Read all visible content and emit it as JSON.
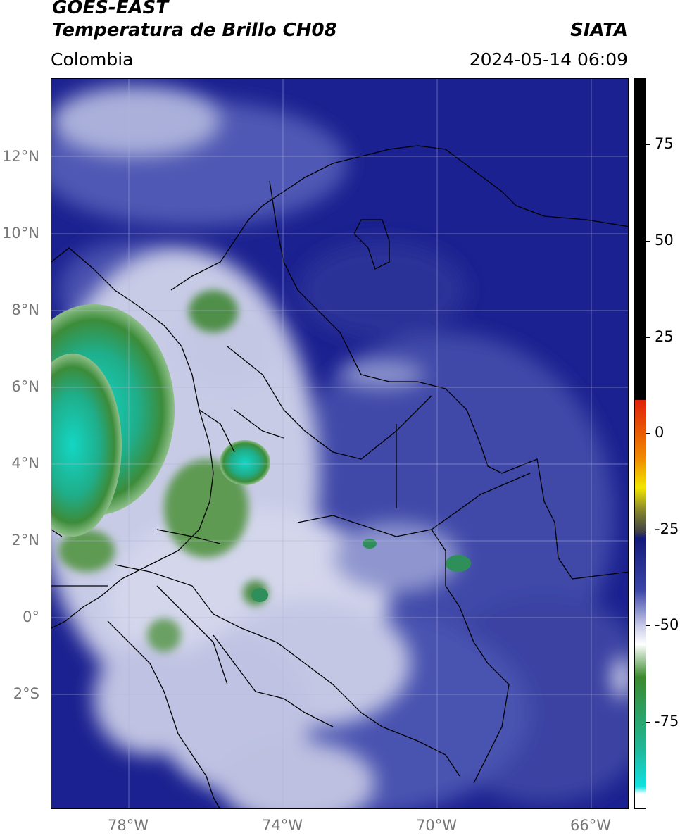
{
  "header": {
    "title_line1": "GOES-EAST",
    "title_line2": "Temperatura de Brillo CH08",
    "brand": "SIATA",
    "region": "Colombia",
    "timestamp": "2024-05-14 06:09"
  },
  "map": {
    "lat_labels": [
      "12°N",
      "10°N",
      "8°N",
      "6°N",
      "4°N",
      "2°N",
      "0°",
      "2°S"
    ],
    "lon_labels": [
      "78°W",
      "74°W",
      "70°W",
      "66°W"
    ],
    "gridlines": true
  },
  "colorbar": {
    "ticks": [
      "75",
      "50",
      "25",
      "0",
      "-25",
      "-50",
      "-75"
    ],
    "colors": {
      "hot": "#000000",
      "red": "#e0200a",
      "orange": "#f08a00",
      "yellow": "#f2e600",
      "olive": "#8a8a2a",
      "dark_gray": "#444444",
      "navy": "#141a7a",
      "blue": "#3a45a8",
      "light": "#c9cbe8",
      "white": "#ffffff",
      "green": "#3a8a2e",
      "teal": "#20b89a",
      "cyan": "#10e2e2"
    }
  }
}
